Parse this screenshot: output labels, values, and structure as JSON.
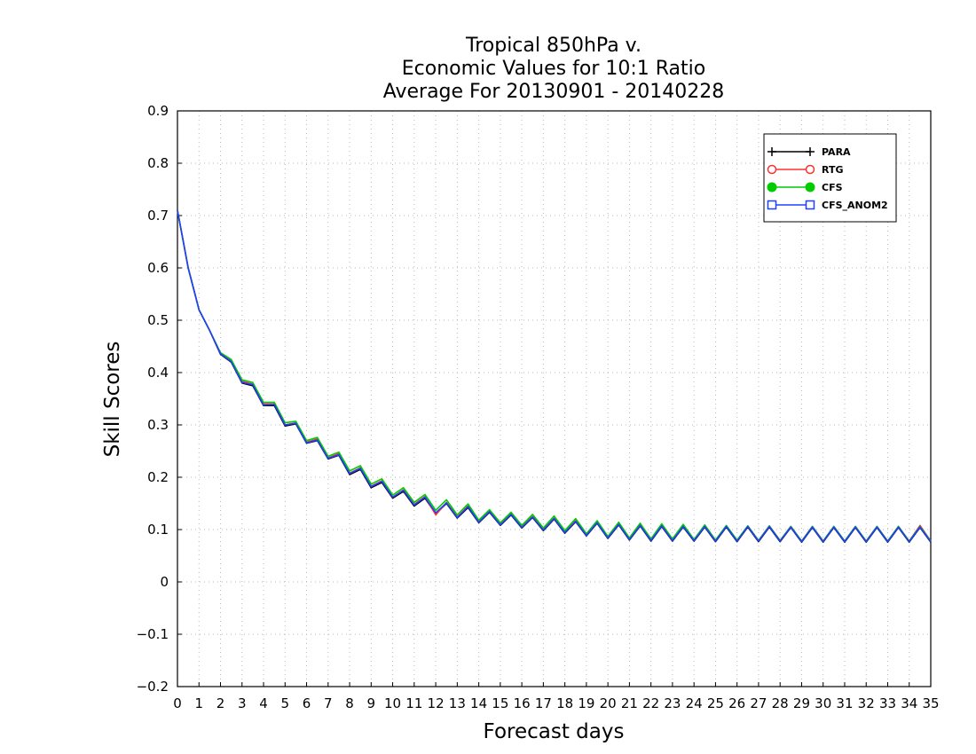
{
  "chart_data": {
    "type": "line",
    "title": [
      "Tropical 850hPa v.",
      "Economic Values for 10:1 Ratio",
      "Average For 20130901 - 20140228"
    ],
    "xlabel": "Forecast days",
    "ylabel": "Skill Scores",
    "xlim": [
      0,
      35
    ],
    "ylim": [
      -0.2,
      0.9
    ],
    "x_ticks": [
      0,
      1,
      2,
      3,
      4,
      5,
      6,
      7,
      8,
      9,
      10,
      11,
      12,
      13,
      14,
      15,
      16,
      17,
      18,
      19,
      20,
      21,
      22,
      23,
      24,
      25,
      26,
      27,
      28,
      29,
      30,
      31,
      32,
      33,
      34,
      35
    ],
    "y_ticks": [
      -0.2,
      -0.1,
      0,
      0.1,
      0.2,
      0.3,
      0.4,
      0.5,
      0.6,
      0.7,
      0.8,
      0.9
    ],
    "y_tick_labels": [
      "−0.2",
      "−0.1",
      "0",
      "0.1",
      "0.2",
      "0.3",
      "0.4",
      "0.5",
      "0.6",
      "0.7",
      "0.8",
      "0.9"
    ],
    "grid": true,
    "legend_position": "top-right",
    "x": [
      0,
      0.5,
      1,
      1.5,
      2,
      2.5,
      3,
      3.5,
      4,
      4.5,
      5,
      5.5,
      6,
      6.5,
      7,
      7.5,
      8,
      8.5,
      9,
      9.5,
      10,
      10.5,
      11,
      11.5,
      12,
      12.5,
      13,
      13.5,
      14,
      14.5,
      15,
      15.5,
      16,
      16.5,
      17,
      17.5,
      18,
      18.5,
      19,
      19.5,
      20,
      20.5,
      21,
      21.5,
      22,
      22.5,
      23,
      23.5,
      24,
      24.5,
      25,
      25.5,
      26,
      26.5,
      27,
      27.5,
      28,
      28.5,
      29,
      29.5,
      30,
      30.5,
      31,
      31.5,
      32,
      32.5,
      33,
      33.5,
      34,
      34.5,
      35
    ],
    "series": [
      {
        "name": "PARA",
        "color": "#000000",
        "marker": "plus",
        "values": [
          0.71,
          0.6,
          0.52,
          0.48,
          0.435,
          0.42,
          0.38,
          0.375,
          0.337,
          0.337,
          0.298,
          0.302,
          0.265,
          0.27,
          0.235,
          0.242,
          0.205,
          0.215,
          0.18,
          0.19,
          0.16,
          0.173,
          0.145,
          0.16,
          0.13,
          0.15,
          0.122,
          0.142,
          0.113,
          0.133,
          0.108,
          0.128,
          0.103,
          0.123,
          0.098,
          0.12,
          0.093,
          0.115,
          0.088,
          0.112,
          0.083,
          0.109,
          0.08,
          0.107,
          0.078,
          0.106,
          0.078,
          0.105,
          0.078,
          0.105,
          0.077,
          0.105,
          0.077,
          0.105,
          0.077,
          0.105,
          0.077,
          0.104,
          0.076,
          0.104,
          0.076,
          0.104,
          0.076,
          0.104,
          0.076,
          0.104,
          0.076,
          0.104,
          0.076,
          0.104,
          0.076
        ]
      },
      {
        "name": "RTG",
        "color": "#ff3030",
        "marker": "open-circle",
        "values": [
          0.71,
          0.6,
          0.52,
          0.48,
          0.437,
          0.423,
          0.383,
          0.378,
          0.34,
          0.34,
          0.3,
          0.304,
          0.267,
          0.273,
          0.237,
          0.245,
          0.208,
          0.218,
          0.183,
          0.193,
          0.162,
          0.176,
          0.148,
          0.163,
          0.128,
          0.152,
          0.124,
          0.145,
          0.115,
          0.135,
          0.11,
          0.13,
          0.105,
          0.125,
          0.1,
          0.122,
          0.095,
          0.117,
          0.09,
          0.114,
          0.085,
          0.111,
          0.082,
          0.109,
          0.08,
          0.108,
          0.08,
          0.107,
          0.08,
          0.107,
          0.079,
          0.107,
          0.079,
          0.107,
          0.079,
          0.107,
          0.079,
          0.106,
          0.078,
          0.106,
          0.078,
          0.106,
          0.078,
          0.106,
          0.078,
          0.106,
          0.078,
          0.106,
          0.078,
          0.108,
          0.078
        ]
      },
      {
        "name": "CFS",
        "color": "#00cc00",
        "marker": "filled-circle",
        "values": [
          0.71,
          0.6,
          0.52,
          0.48,
          0.438,
          0.425,
          0.386,
          0.381,
          0.343,
          0.343,
          0.304,
          0.307,
          0.27,
          0.276,
          0.24,
          0.248,
          0.212,
          0.222,
          0.187,
          0.197,
          0.166,
          0.18,
          0.152,
          0.167,
          0.137,
          0.157,
          0.128,
          0.149,
          0.118,
          0.138,
          0.113,
          0.133,
          0.108,
          0.129,
          0.103,
          0.126,
          0.098,
          0.121,
          0.092,
          0.117,
          0.087,
          0.114,
          0.084,
          0.112,
          0.082,
          0.111,
          0.082,
          0.11,
          0.081,
          0.109,
          0.08,
          0.108,
          0.08,
          0.107,
          0.079,
          0.107,
          0.079,
          0.106,
          0.078,
          0.106,
          0.078,
          0.106,
          0.078,
          0.106,
          0.078,
          0.106,
          0.078,
          0.106,
          0.078,
          0.106,
          0.078
        ]
      },
      {
        "name": "CFS_ANOM2",
        "color": "#2040ff",
        "marker": "open-square",
        "values": [
          0.71,
          0.6,
          0.52,
          0.48,
          0.436,
          0.421,
          0.381,
          0.377,
          0.338,
          0.339,
          0.3,
          0.303,
          0.266,
          0.271,
          0.236,
          0.243,
          0.207,
          0.217,
          0.182,
          0.192,
          0.162,
          0.175,
          0.147,
          0.162,
          0.132,
          0.151,
          0.123,
          0.144,
          0.114,
          0.134,
          0.109,
          0.129,
          0.104,
          0.124,
          0.099,
          0.121,
          0.094,
          0.116,
          0.089,
          0.113,
          0.084,
          0.11,
          0.081,
          0.108,
          0.079,
          0.107,
          0.079,
          0.106,
          0.079,
          0.106,
          0.078,
          0.106,
          0.078,
          0.106,
          0.078,
          0.106,
          0.078,
          0.105,
          0.077,
          0.105,
          0.077,
          0.105,
          0.077,
          0.105,
          0.077,
          0.105,
          0.077,
          0.105,
          0.077,
          0.105,
          0.077
        ]
      }
    ]
  }
}
